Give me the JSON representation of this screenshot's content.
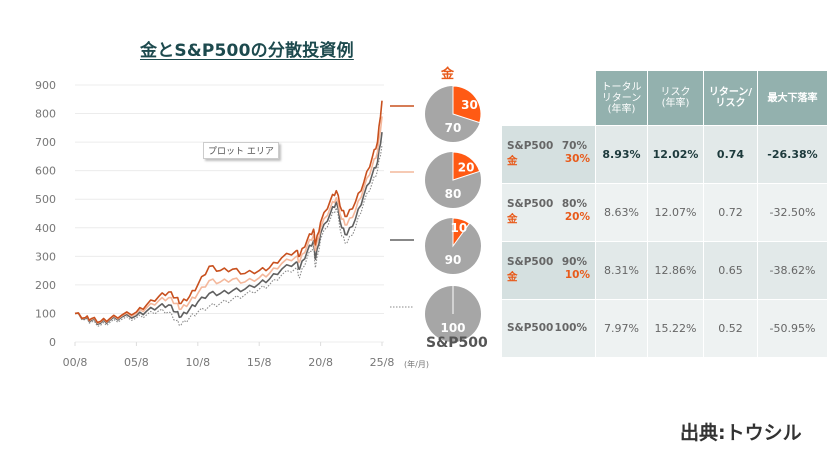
{
  "title": "金とS&P500の分散投資例",
  "tooltip": "プロット エリア",
  "unit_label": "(年/月)",
  "gold_label": "金",
  "sp500_label": "S&P500",
  "source": "出典:トウシル",
  "colors": {
    "series_70_30": "#c8501e",
    "series_80_20": "#f4b89c",
    "series_90_10": "#606060",
    "series_100": "#8a8a8a",
    "pie_gold": "#ff5a14",
    "pie_sp": "#a6a6a6",
    "header": "#93b1ae",
    "title": "#1d4a4e"
  },
  "pies": [
    {
      "gold": 30,
      "sp": 70,
      "gold_label": "30",
      "sp_label": "70",
      "line_style": "solid-dark-orange"
    },
    {
      "gold": 20,
      "sp": 80,
      "gold_label": "20",
      "sp_label": "80",
      "line_style": "solid-light-orange"
    },
    {
      "gold": 10,
      "sp": 90,
      "gold_label": "10",
      "sp_label": "90",
      "line_style": "solid-gray"
    },
    {
      "gold": 0,
      "sp": 100,
      "gold_label": "",
      "sp_label": "100",
      "line_style": "dotted-gray"
    }
  ],
  "table": {
    "headers": [
      "トータル\nリターン\n(年率)",
      "リスク\n(年率)",
      "リターン/\nリスク",
      "最大下落率"
    ],
    "rows": [
      {
        "sp_name": "S&P500",
        "sp_pct": "70%",
        "gold_name": "金",
        "gold_pct": "30%",
        "total_return": "8.93%",
        "risk": "12.02%",
        "ratio": "0.74",
        "max_dd": "-26.38%"
      },
      {
        "sp_name": "S&P500",
        "sp_pct": "80%",
        "gold_name": "金",
        "gold_pct": "20%",
        "total_return": "8.63%",
        "risk": "12.07%",
        "ratio": "0.72",
        "max_dd": "-32.50%"
      },
      {
        "sp_name": "S&P500",
        "sp_pct": "90%",
        "gold_name": "金",
        "gold_pct": "10%",
        "total_return": "8.31%",
        "risk": "12.86%",
        "ratio": "0.65",
        "max_dd": "-38.62%"
      },
      {
        "sp_name": "S&P500",
        "sp_pct": "100%",
        "gold_name": "",
        "gold_pct": "",
        "total_return": "7.97%",
        "risk": "15.22%",
        "ratio": "0.52",
        "max_dd": "-50.95%"
      }
    ]
  },
  "chart_data": {
    "type": "line",
    "title": "金とS&P500の分散投資例",
    "xlabel": "(年/月)",
    "ylabel": "",
    "ylim": [
      0,
      900
    ],
    "xlim": [
      2000.67,
      2025.67
    ],
    "yticks": [
      "0",
      "100",
      "200",
      "300",
      "400",
      "500",
      "600",
      "700",
      "800",
      "900"
    ],
    "xticks": [
      "00/8",
      "05/8",
      "10/8",
      "15/8",
      "20/8",
      "25/8"
    ],
    "xtick_values": [
      2000.67,
      2005.67,
      2010.67,
      2015.67,
      2020.67,
      2025.67
    ],
    "grid": true,
    "x": [
      2000.67,
      2001.5,
      2002.0,
      2002.75,
      2003.5,
      2004.5,
      2005.67,
      2006.5,
      2007.5,
      2008.3,
      2008.9,
      2009.3,
      2010.0,
      2010.67,
      2011.6,
      2012.5,
      2013.5,
      2014.5,
      2015.67,
      2016.5,
      2017.5,
      2018.7,
      2018.95,
      2019.6,
      2020.1,
      2020.25,
      2020.67,
      2021.5,
      2021.95,
      2022.4,
      2022.8,
      2023.5,
      2024.2,
      2024.9,
      2025.3,
      2025.67
    ],
    "series": [
      {
        "name": "S&P500 70% / 金 30%",
        "values": [
          100,
          85,
          82,
          72,
          82,
          95,
          105,
          130,
          160,
          175,
          155,
          135,
          160,
          200,
          265,
          250,
          255,
          240,
          250,
          260,
          295,
          320,
          300,
          360,
          395,
          340,
          420,
          500,
          530,
          460,
          440,
          490,
          560,
          650,
          700,
          845
        ]
      },
      {
        "name": "S&P500 80% / 金 20%",
        "values": [
          100,
          84,
          80,
          70,
          80,
          92,
          100,
          120,
          145,
          155,
          135,
          115,
          140,
          170,
          215,
          210,
          220,
          210,
          225,
          240,
          275,
          300,
          280,
          340,
          375,
          320,
          400,
          475,
          505,
          430,
          410,
          460,
          540,
          620,
          665,
          790
        ]
      },
      {
        "name": "S&P500 90% / 金 10%",
        "values": [
          100,
          82,
          76,
          66,
          76,
          88,
          92,
          108,
          125,
          130,
          105,
          88,
          115,
          140,
          170,
          170,
          180,
          185,
          205,
          220,
          255,
          280,
          255,
          320,
          355,
          290,
          380,
          455,
          490,
          400,
          375,
          430,
          515,
          590,
          630,
          735
        ]
      },
      {
        "name": "S&P500 100%",
        "values": [
          100,
          78,
          70,
          58,
          68,
          80,
          84,
          95,
          110,
          105,
          75,
          60,
          85,
          105,
          125,
          135,
          150,
          165,
          185,
          200,
          235,
          260,
          225,
          300,
          335,
          260,
          360,
          435,
          470,
          370,
          345,
          400,
          490,
          560,
          600,
          690
        ]
      }
    ]
  }
}
